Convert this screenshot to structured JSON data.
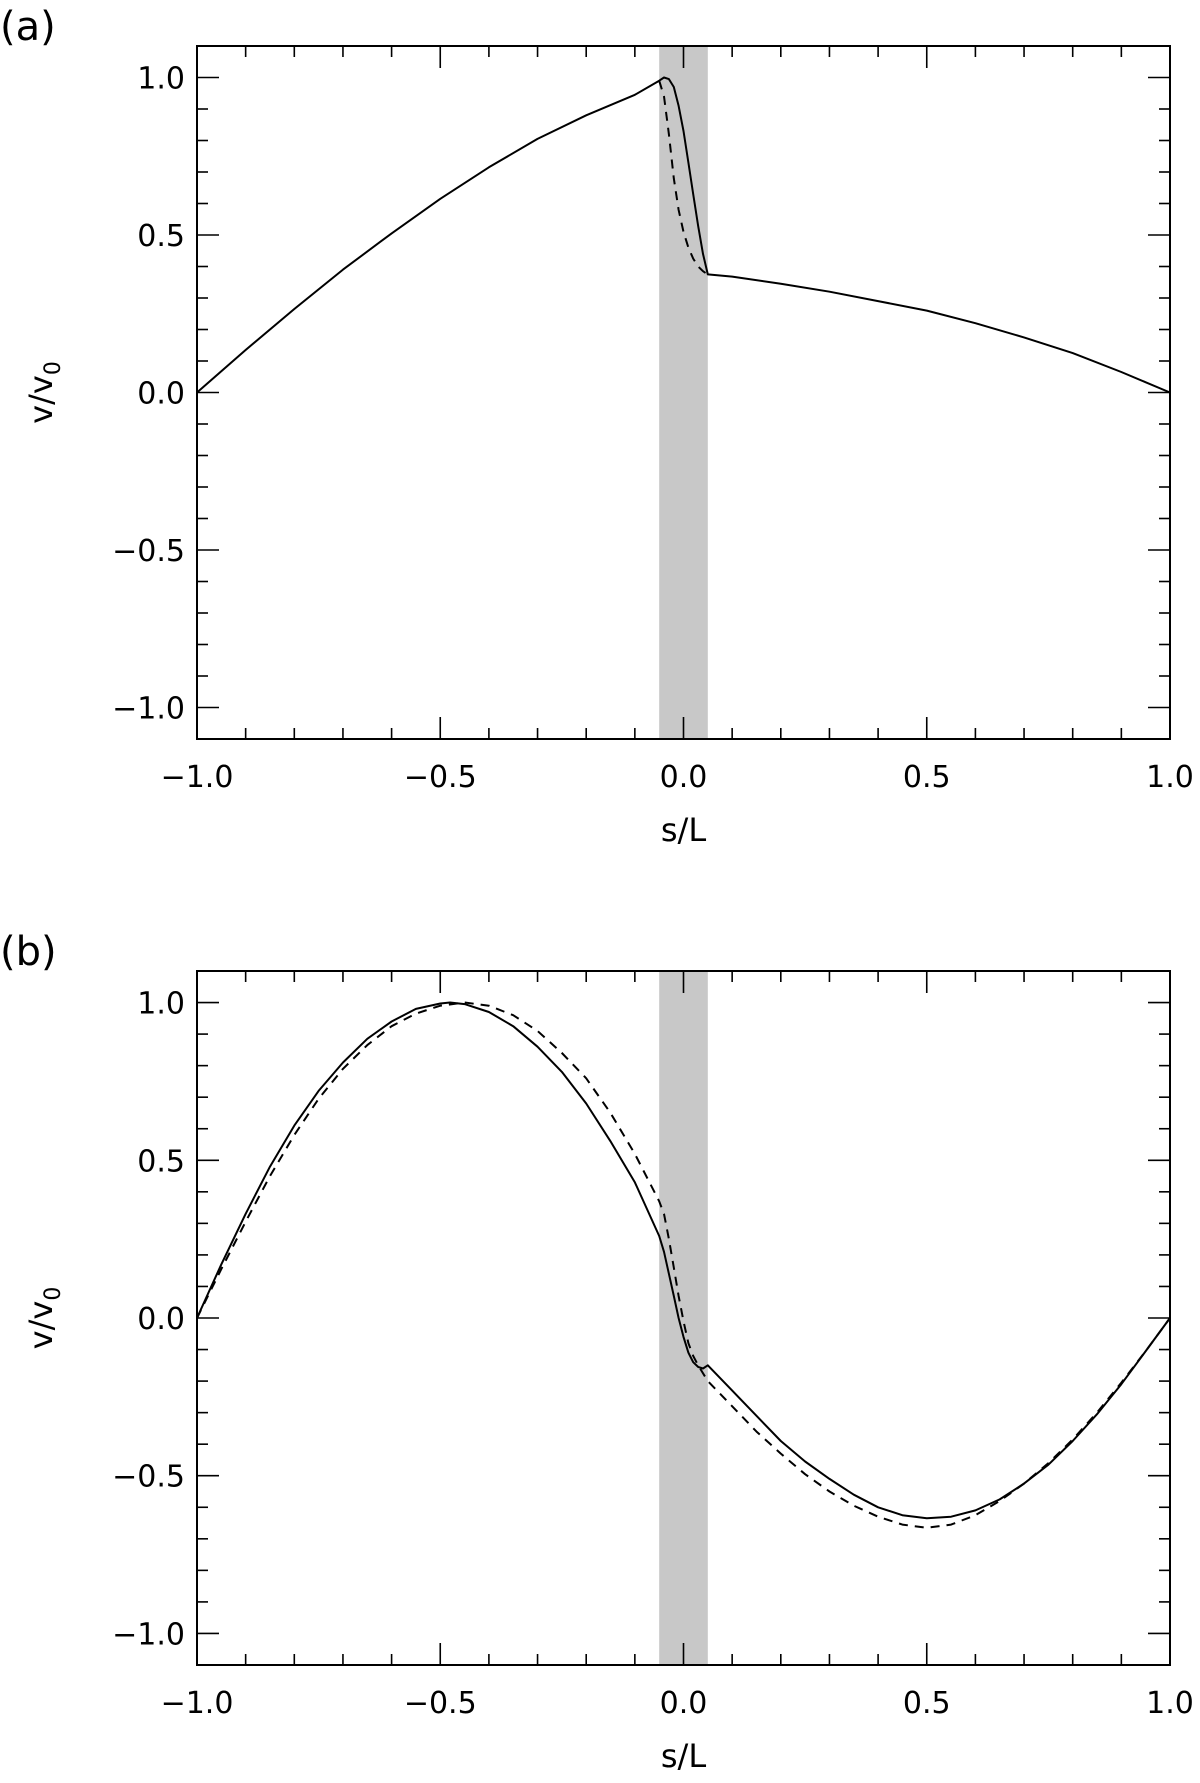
{
  "chart_data": [
    {
      "type": "line",
      "panel_label": "(a)",
      "xlabel": "s/L",
      "ylabel_main": "v/v",
      "ylabel_sub": "0",
      "xlim": [
        -1.0,
        1.0
      ],
      "ylim": [
        -1.1,
        1.1
      ],
      "x_ticks": [
        -1.0,
        -0.5,
        0.0,
        0.5,
        1.0
      ],
      "x_tick_labels": [
        "−1.0",
        "−0.5",
        "0.0",
        "0.5",
        "1.0"
      ],
      "y_ticks": [
        -1.0,
        -0.5,
        0.0,
        0.5,
        1.0
      ],
      "y_tick_labels": [
        "−1.0",
        "−0.5",
        "0.0",
        "0.5",
        "1.0"
      ],
      "shaded_region": {
        "x": [
          -0.05,
          0.05
        ],
        "color": "#c8c8c8"
      },
      "series": [
        {
          "style": "solid",
          "points": [
            [
              -1.0,
              0.0
            ],
            [
              -0.9,
              0.135
            ],
            [
              -0.8,
              0.265
            ],
            [
              -0.7,
              0.39
            ],
            [
              -0.6,
              0.505
            ],
            [
              -0.5,
              0.615
            ],
            [
              -0.4,
              0.715
            ],
            [
              -0.3,
              0.805
            ],
            [
              -0.2,
              0.88
            ],
            [
              -0.1,
              0.945
            ],
            [
              -0.05,
              0.99
            ],
            [
              -0.04,
              1.0
            ],
            [
              -0.03,
              0.995
            ],
            [
              -0.02,
              0.97
            ],
            [
              -0.01,
              0.91
            ],
            [
              0.0,
              0.83
            ],
            [
              0.01,
              0.73
            ],
            [
              0.02,
              0.63
            ],
            [
              0.03,
              0.53
            ],
            [
              0.04,
              0.44
            ],
            [
              0.05,
              0.375
            ],
            [
              0.1,
              0.368
            ],
            [
              0.2,
              0.345
            ],
            [
              0.3,
              0.32
            ],
            [
              0.4,
              0.29
            ],
            [
              0.5,
              0.26
            ],
            [
              0.6,
              0.22
            ],
            [
              0.7,
              0.175
            ],
            [
              0.8,
              0.125
            ],
            [
              0.9,
              0.065
            ],
            [
              1.0,
              0.0
            ]
          ]
        },
        {
          "style": "dashed",
          "points": [
            [
              -0.05,
              0.99
            ],
            [
              -0.04,
              0.94
            ],
            [
              -0.03,
              0.82
            ],
            [
              -0.02,
              0.68
            ],
            [
              -0.01,
              0.58
            ],
            [
              0.0,
              0.51
            ],
            [
              0.01,
              0.46
            ],
            [
              0.02,
              0.425
            ],
            [
              0.03,
              0.4
            ],
            [
              0.04,
              0.385
            ],
            [
              0.05,
              0.375
            ]
          ]
        }
      ]
    },
    {
      "type": "line",
      "panel_label": "(b)",
      "xlabel": "s/L",
      "ylabel_main": "v/v",
      "ylabel_sub": "0",
      "xlim": [
        -1.0,
        1.0
      ],
      "ylim": [
        -1.1,
        1.1
      ],
      "x_ticks": [
        -1.0,
        -0.5,
        0.0,
        0.5,
        1.0
      ],
      "x_tick_labels": [
        "−1.0",
        "−0.5",
        "0.0",
        "0.5",
        "1.0"
      ],
      "y_ticks": [
        -1.0,
        -0.5,
        0.0,
        0.5,
        1.0
      ],
      "y_tick_labels": [
        "−1.0",
        "−0.5",
        "0.0",
        "0.5",
        "1.0"
      ],
      "shaded_region": {
        "x": [
          -0.05,
          0.05
        ],
        "color": "#c8c8c8"
      },
      "series": [
        {
          "style": "solid",
          "points": [
            [
              -1.0,
              0.0
            ],
            [
              -0.95,
              0.17
            ],
            [
              -0.9,
              0.33
            ],
            [
              -0.85,
              0.48
            ],
            [
              -0.8,
              0.61
            ],
            [
              -0.75,
              0.72
            ],
            [
              -0.7,
              0.81
            ],
            [
              -0.65,
              0.885
            ],
            [
              -0.6,
              0.94
            ],
            [
              -0.55,
              0.98
            ],
            [
              -0.5,
              0.997
            ],
            [
              -0.48,
              1.0
            ],
            [
              -0.45,
              0.995
            ],
            [
              -0.4,
              0.97
            ],
            [
              -0.35,
              0.925
            ],
            [
              -0.3,
              0.86
            ],
            [
              -0.25,
              0.78
            ],
            [
              -0.2,
              0.68
            ],
            [
              -0.15,
              0.56
            ],
            [
              -0.1,
              0.43
            ],
            [
              -0.05,
              0.26
            ],
            [
              -0.04,
              0.21
            ],
            [
              -0.03,
              0.14
            ],
            [
              -0.02,
              0.07
            ],
            [
              -0.01,
              0.0
            ],
            [
              0.0,
              -0.06
            ],
            [
              0.01,
              -0.11
            ],
            [
              0.02,
              -0.14
            ],
            [
              0.03,
              -0.155
            ],
            [
              0.04,
              -0.16
            ],
            [
              0.05,
              -0.15
            ],
            [
              0.1,
              -0.23
            ],
            [
              0.15,
              -0.31
            ],
            [
              0.2,
              -0.39
            ],
            [
              0.25,
              -0.455
            ],
            [
              0.3,
              -0.51
            ],
            [
              0.35,
              -0.56
            ],
            [
              0.4,
              -0.6
            ],
            [
              0.45,
              -0.625
            ],
            [
              0.5,
              -0.635
            ],
            [
              0.55,
              -0.63
            ],
            [
              0.6,
              -0.61
            ],
            [
              0.65,
              -0.575
            ],
            [
              0.7,
              -0.525
            ],
            [
              0.75,
              -0.465
            ],
            [
              0.8,
              -0.39
            ],
            [
              0.85,
              -0.305
            ],
            [
              0.9,
              -0.21
            ],
            [
              0.95,
              -0.105
            ],
            [
              1.0,
              0.0
            ]
          ]
        },
        {
          "style": "dashed",
          "points": [
            [
              -1.0,
              0.0
            ],
            [
              -0.95,
              0.155
            ],
            [
              -0.9,
              0.305
            ],
            [
              -0.85,
              0.45
            ],
            [
              -0.8,
              0.58
            ],
            [
              -0.75,
              0.695
            ],
            [
              -0.7,
              0.79
            ],
            [
              -0.65,
              0.865
            ],
            [
              -0.6,
              0.925
            ],
            [
              -0.55,
              0.965
            ],
            [
              -0.5,
              0.99
            ],
            [
              -0.45,
              1.0
            ],
            [
              -0.4,
              0.99
            ],
            [
              -0.35,
              0.96
            ],
            [
              -0.3,
              0.91
            ],
            [
              -0.25,
              0.84
            ],
            [
              -0.2,
              0.76
            ],
            [
              -0.15,
              0.65
            ],
            [
              -0.1,
              0.52
            ],
            [
              -0.05,
              0.37
            ],
            [
              -0.04,
              0.33
            ],
            [
              -0.03,
              0.25
            ],
            [
              -0.02,
              0.16
            ],
            [
              -0.01,
              0.07
            ],
            [
              0.0,
              -0.01
            ],
            [
              0.01,
              -0.08
            ],
            [
              0.02,
              -0.12
            ],
            [
              0.03,
              -0.15
            ],
            [
              0.05,
              -0.2
            ],
            [
              0.1,
              -0.28
            ],
            [
              0.15,
              -0.36
            ],
            [
              0.2,
              -0.43
            ],
            [
              0.25,
              -0.495
            ],
            [
              0.3,
              -0.55
            ],
            [
              0.35,
              -0.595
            ],
            [
              0.4,
              -0.63
            ],
            [
              0.45,
              -0.655
            ],
            [
              0.5,
              -0.665
            ],
            [
              0.55,
              -0.655
            ],
            [
              0.6,
              -0.625
            ],
            [
              0.65,
              -0.58
            ],
            [
              0.7,
              -0.525
            ],
            [
              0.75,
              -0.46
            ],
            [
              0.8,
              -0.385
            ],
            [
              0.85,
              -0.3
            ],
            [
              0.9,
              -0.205
            ],
            [
              0.95,
              -0.105
            ],
            [
              1.0,
              0.0
            ]
          ]
        }
      ]
    }
  ]
}
